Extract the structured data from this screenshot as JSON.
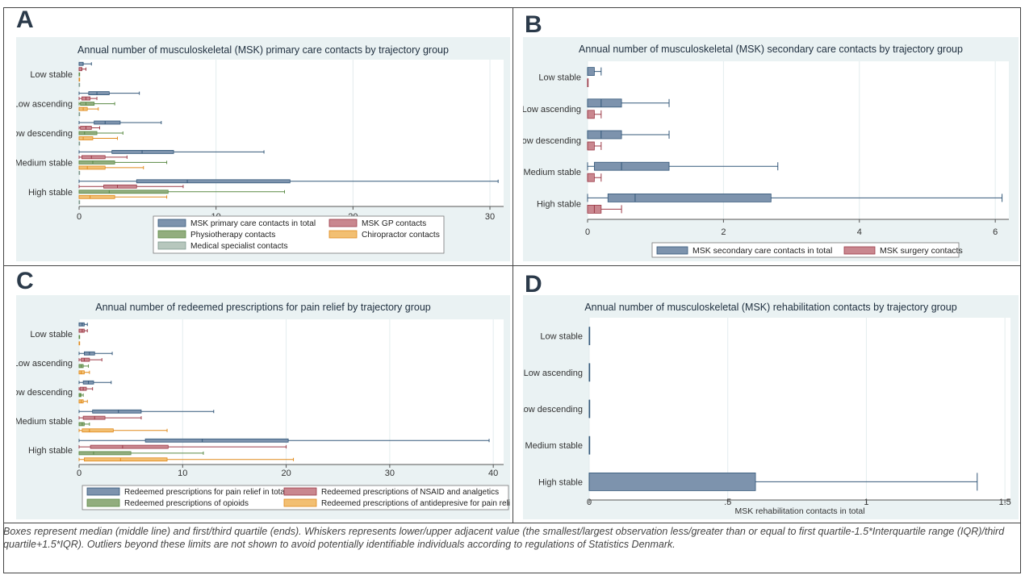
{
  "panels": [
    {
      "letter": "A",
      "chart": {
        "type": "boxplot-horizontal",
        "title": "Annual number of musculoskeletal (MSK) primary care contacts by trajectory group",
        "groups": [
          "Low stable",
          "Low ascending",
          "Low descending",
          "Medium stable",
          "High stable"
        ],
        "xlim": [
          0,
          31
        ],
        "xticks": [
          0,
          10,
          20,
          30
        ],
        "xlabel": "",
        "series": [
          {
            "name": "MSK primary care contacts in total",
            "color": "#7d93ad",
            "stroke": "#34587a"
          },
          {
            "name": "MSK GP contacts",
            "color": "#c9878f",
            "stroke": "#9c3b48"
          },
          {
            "name": "Physiotherapy contacts",
            "color": "#92ad7e",
            "stroke": "#5a8a45"
          },
          {
            "name": "Chiropractor contacts",
            "color": "#f2bf72",
            "stroke": "#e08a1c"
          },
          {
            "name": "Medical specialist contacts",
            "color": "#b7c7bd",
            "stroke": "#7f9a8e"
          }
        ],
        "data": [
          [
            [
              0,
              0,
              0.3,
              0.3,
              0.9
            ],
            [
              0,
              0,
              0.2,
              0.2,
              0.5
            ],
            [
              0,
              0,
              0,
              0,
              0
            ],
            [
              0,
              0,
              0,
              0,
              0
            ],
            [
              0,
              0,
              0,
              0,
              0
            ]
          ],
          [
            [
              0,
              0.7,
              1.3,
              2.2,
              4.4
            ],
            [
              0,
              0.2,
              0.5,
              0.8,
              1.3
            ],
            [
              0,
              0.1,
              0.5,
              1.1,
              2.6
            ],
            [
              0,
              0,
              0.3,
              0.6,
              1.4
            ],
            [
              0,
              0,
              0,
              0,
              0
            ]
          ],
          [
            [
              0,
              1.1,
              1.9,
              3.0,
              6.0
            ],
            [
              0,
              0.1,
              0.5,
              0.9,
              1.5
            ],
            [
              0,
              0,
              0.4,
              1.3,
              3.2
            ],
            [
              0,
              0,
              0.3,
              1.0,
              2.8
            ],
            [
              0,
              0,
              0,
              0,
              0
            ]
          ],
          [
            [
              0,
              2.4,
              4.6,
              6.9,
              13.5
            ],
            [
              0,
              0.2,
              0.9,
              1.9,
              3.5
            ],
            [
              0,
              0,
              1.0,
              2.6,
              6.4
            ],
            [
              0,
              0,
              0.6,
              1.9,
              4.7
            ],
            [
              0,
              0,
              0,
              0,
              0
            ]
          ],
          [
            [
              0,
              4.2,
              7.9,
              15.4,
              30.6
            ],
            [
              0,
              1.8,
              2.8,
              4.2,
              7.6
            ],
            [
              0,
              0,
              2.2,
              6.5,
              15.0
            ],
            [
              0,
              0,
              0.8,
              2.6,
              6.4
            ],
            [
              0,
              0,
              0,
              0,
              0
            ]
          ]
        ]
      }
    },
    {
      "letter": "B",
      "chart": {
        "type": "boxplot-horizontal",
        "title": "Annual number of musculoskeletal (MSK) secondary care contacts by trajectory group",
        "groups": [
          "Low stable",
          "Low ascending",
          "Low descending",
          "Medium stable",
          "High stable"
        ],
        "xlim": [
          0,
          6.2
        ],
        "xticks": [
          0,
          2,
          4,
          6
        ],
        "xlabel": "",
        "series": [
          {
            "name": "MSK secondary care contacts in total",
            "color": "#7d93ad",
            "stroke": "#34587a"
          },
          {
            "name": "MSK surgery contacts",
            "color": "#c9878f",
            "stroke": "#9c3b48"
          }
        ],
        "data": [
          [
            [
              0,
              0,
              0,
              0.1,
              0.2
            ],
            [
              0,
              0,
              0,
              0,
              0
            ]
          ],
          [
            [
              0,
              0,
              0.2,
              0.5,
              1.2
            ],
            [
              0,
              0,
              0,
              0.1,
              0.2
            ]
          ],
          [
            [
              0,
              0,
              0.2,
              0.5,
              1.2
            ],
            [
              0,
              0,
              0,
              0.1,
              0.2
            ]
          ],
          [
            [
              0,
              0.1,
              0.5,
              1.2,
              2.8
            ],
            [
              0,
              0,
              0,
              0.1,
              0.2
            ]
          ],
          [
            [
              0,
              0.3,
              0.7,
              2.7,
              6.1
            ],
            [
              0,
              0,
              0.1,
              0.2,
              0.5
            ]
          ]
        ]
      }
    },
    {
      "letter": "C",
      "chart": {
        "type": "boxplot-horizontal",
        "title": "Annual number of redeemed prescriptions for pain relief by trajectory group",
        "groups": [
          "Low stable",
          "Low ascending",
          "Low descending",
          "Medium stable",
          "High stable"
        ],
        "xlim": [
          0,
          41
        ],
        "xticks": [
          0,
          10,
          20,
          30,
          40
        ],
        "xlabel": "",
        "series": [
          {
            "name": "Redeemed prescriptions for pain relief in total",
            "color": "#7d93ad",
            "stroke": "#34587a"
          },
          {
            "name": "Redeemed prescriptions of NSAID and analgetics",
            "color": "#c9878f",
            "stroke": "#9c3b48"
          },
          {
            "name": "Redeemed prescriptions of opioids",
            "color": "#92ad7e",
            "stroke": "#5a8a45"
          },
          {
            "name": "Redeemed prescriptions of antidepresive for pain relief",
            "color": "#f2bf72",
            "stroke": "#e08a1c"
          }
        ],
        "data": [
          [
            [
              0,
              0,
              0.3,
              0.5,
              0.8
            ],
            [
              0,
              0,
              0.3,
              0.5,
              0.8
            ],
            [
              0,
              0,
              0,
              0,
              0
            ],
            [
              0,
              0,
              0,
              0,
              0
            ]
          ],
          [
            [
              0,
              0.5,
              1.0,
              1.5,
              3.2
            ],
            [
              0,
              0.2,
              0.5,
              1.0,
              2.2
            ],
            [
              0,
              0,
              0.2,
              0.4,
              0.9
            ],
            [
              0,
              0,
              0.2,
              0.5,
              1.0
            ]
          ],
          [
            [
              0,
              0.4,
              0.9,
              1.4,
              3.1
            ],
            [
              0,
              0.1,
              0.4,
              0.7,
              1.3
            ],
            [
              0,
              0,
              0.1,
              0.2,
              0.4
            ],
            [
              0,
              0,
              0.2,
              0.4,
              0.8
            ]
          ],
          [
            [
              0,
              1.3,
              3.8,
              6.0,
              13.0
            ],
            [
              0,
              0.4,
              1.5,
              2.5,
              6.0
            ],
            [
              0,
              0,
              0.3,
              0.5,
              1.0
            ],
            [
              0,
              0.3,
              1.0,
              3.3,
              8.5
            ]
          ],
          [
            [
              0,
              6.4,
              11.9,
              20.2,
              39.6
            ],
            [
              0,
              1.1,
              4.2,
              8.6,
              20.0
            ],
            [
              0,
              0,
              1.4,
              5.0,
              12.0
            ],
            [
              0,
              0.5,
              4.0,
              8.5,
              20.7
            ]
          ]
        ]
      }
    },
    {
      "letter": "D",
      "chart": {
        "type": "boxplot-horizontal",
        "title": "Annual number of musculoskeletal (MSK) rehabilitation contacts by trajectory group",
        "groups": [
          "Low stable",
          "Low ascending",
          "Low descending",
          "Medium stable",
          "High stable"
        ],
        "xlim": [
          0,
          1.52
        ],
        "xticks": [
          0,
          0.5,
          1,
          1.5
        ],
        "xticklabels": [
          "0",
          ".5",
          "1",
          "1.5"
        ],
        "xlabel": "MSK rehabilitation contacts in total",
        "series": [
          {
            "name": "MSK rehabilitation contacts in total",
            "color": "#7d93ad",
            "stroke": "#34587a"
          }
        ],
        "data": [
          [
            [
              0,
              0,
              0,
              0,
              0
            ]
          ],
          [
            [
              0,
              0,
              0,
              0,
              0
            ]
          ],
          [
            [
              0,
              0,
              0,
              0,
              0
            ]
          ],
          [
            [
              0,
              0,
              0,
              0,
              0
            ]
          ],
          [
            [
              0,
              0,
              0,
              0.6,
              1.4
            ]
          ]
        ]
      }
    }
  ],
  "caption": "Boxes represent median (middle line)  and first/third quartile (ends). Whiskers represents lower/upper adjacent value (the smallest/largest observation less/greater than or equal to first quartile-1.5*Interquartile range (IQR)/third quartile+1.5*IQR). Outliers beyond these limits are not shown to avoid potentially identifiable individuals according to regulations of Statistics Denmark.",
  "colors": {
    "panel_bg": "#eaf2f3",
    "plot_bg": "#ffffff",
    "grid": "#e3ecee",
    "axis": "#555555"
  }
}
